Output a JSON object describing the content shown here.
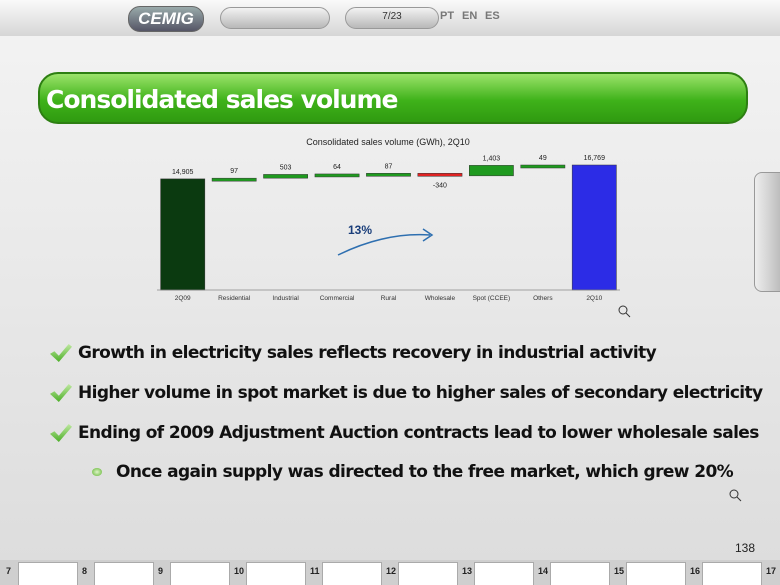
{
  "nav": {
    "logo": "CEMIG",
    "page": "7/23",
    "languages": [
      "PT",
      "EN",
      "ES"
    ]
  },
  "slide_title": "Consolidated sales volume",
  "chart_data": {
    "type": "waterfall",
    "title": "Consolidated sales volume (GWh), 2Q10",
    "categories": [
      "2Q09",
      "Residential",
      "Industrial",
      "Commercial",
      "Rural",
      "Wholesale",
      "Spot (CCEE)",
      "Others",
      "2Q10"
    ],
    "values": [
      14905,
      97,
      503,
      64,
      87,
      -340,
      1403,
      49,
      16769
    ],
    "value_labels": [
      "14,905",
      "97",
      "503",
      "64",
      "87",
      "-340",
      "1,403",
      "49",
      "16,769"
    ],
    "colors": {
      "start": "#0b3a10",
      "increase": "#1f9a1f",
      "decrease": "#e02424",
      "end": "#2c2ce6"
    },
    "annotation": "13%"
  },
  "bullets": [
    "Growth in electricity sales reflects recovery in industrial activity",
    "Higher volume in spot market is due to higher sales of secondary electricity",
    "Ending of 2009 Adjustment Auction contracts lead to lower wholesale sales"
  ],
  "sub_bullet": "Once again supply was directed to the free market, which grew 20%",
  "page_number": "138",
  "thumbnails": [
    7,
    8,
    9,
    10,
    11,
    12,
    13,
    14,
    15,
    16,
    17
  ]
}
